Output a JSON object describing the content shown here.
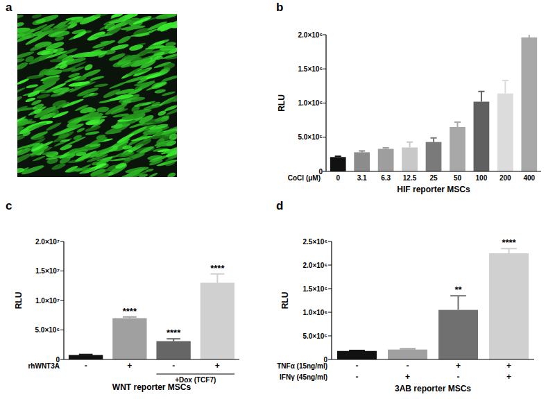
{
  "image_panel": {
    "panel": "a"
  },
  "chart_data": [
    {
      "type": "bar",
      "panel": "b",
      "y_label": "RLU",
      "x_label": "HIF reporter MSCs",
      "category_label": "CoCl (μM)",
      "categories": [
        "0",
        "3.1",
        "6.3",
        "12.5",
        "25",
        "50",
        "100",
        "200",
        "400"
      ],
      "values": [
        210000,
        280000,
        330000,
        350000,
        430000,
        650000,
        1020000,
        1140000,
        1960000
      ],
      "errors": [
        10000,
        20000,
        15000,
        80000,
        60000,
        70000,
        150000,
        190000,
        80000
      ],
      "colors": [
        "#111111",
        "#8c8c8c",
        "#9e9e9e",
        "#c8c8c8",
        "#7a7a7a",
        "#a8a8a8",
        "#606060",
        "#dcdcdc",
        "#a8a8a8"
      ],
      "ylim": [
        0,
        2000000
      ],
      "yticks": [
        0,
        {
          "value": 500000,
          "label": "5.0×10⁵"
        },
        {
          "value": 1000000,
          "label": "1.0×10⁶"
        },
        {
          "value": 1500000,
          "label": "1.5×10⁶"
        },
        {
          "value": 2000000,
          "label": "2.0×10⁶"
        }
      ]
    },
    {
      "type": "bar",
      "panel": "c",
      "y_label": "RLU",
      "x_label": "WNT reporter MSCs",
      "categories": [
        null,
        null,
        null,
        null
      ],
      "condition_rows": [
        {
          "label": "rhWNT3A",
          "values": [
            "-",
            "+",
            "-",
            "+"
          ]
        }
      ],
      "group_annotation": {
        "label": "+Dox (TCF7)",
        "members": [
          false,
          false,
          true,
          true
        ]
      },
      "values": [
        750000,
        7000000,
        3100000,
        13000000
      ],
      "errors": [
        100000,
        200000,
        400000,
        1500000
      ],
      "significance": [
        null,
        "****",
        "****",
        "****"
      ],
      "colors": [
        "#111111",
        "#a0a0a0",
        "#666666",
        "#d0d0d0"
      ],
      "ylim": [
        0,
        20000000
      ],
      "yticks": [
        0,
        {
          "value": 5000000,
          "label": "5.0×10⁶"
        },
        {
          "value": 10000000,
          "label": "1.0×10⁷"
        },
        {
          "value": 15000000,
          "label": "1.5×10⁷"
        },
        {
          "value": 20000000,
          "label": "2.0×10⁷"
        }
      ]
    },
    {
      "type": "bar",
      "panel": "d",
      "y_label": "RLU",
      "x_label": "3AB reporter MSCs",
      "categories": [
        null,
        null,
        null,
        null
      ],
      "condition_rows": [
        {
          "label": "TNFα (15ng/ml)",
          "values": [
            "-",
            "-",
            "+",
            "+"
          ]
        },
        {
          "label": "IFNγ (45ng/ml)",
          "values": [
            "-",
            "+",
            "-",
            "+"
          ]
        }
      ],
      "values": [
        180000,
        210000,
        1050000,
        2250000
      ],
      "errors": [
        10000,
        15000,
        300000,
        100000
      ],
      "significance": [
        null,
        null,
        "**",
        "****"
      ],
      "colors": [
        "#111111",
        "#a0a0a0",
        "#707070",
        "#d0d0d0"
      ],
      "ylim": [
        0,
        2500000
      ],
      "yticks": [
        0,
        {
          "value": 500000,
          "label": "5.0×10⁵"
        },
        {
          "value": 1000000,
          "label": "1.0×10⁶"
        },
        {
          "value": 1500000,
          "label": "1.5×10⁶"
        },
        {
          "value": 2000000,
          "label": "2.0×10⁶"
        },
        {
          "value": 2500000,
          "label": "2.5×10⁶"
        }
      ]
    }
  ]
}
